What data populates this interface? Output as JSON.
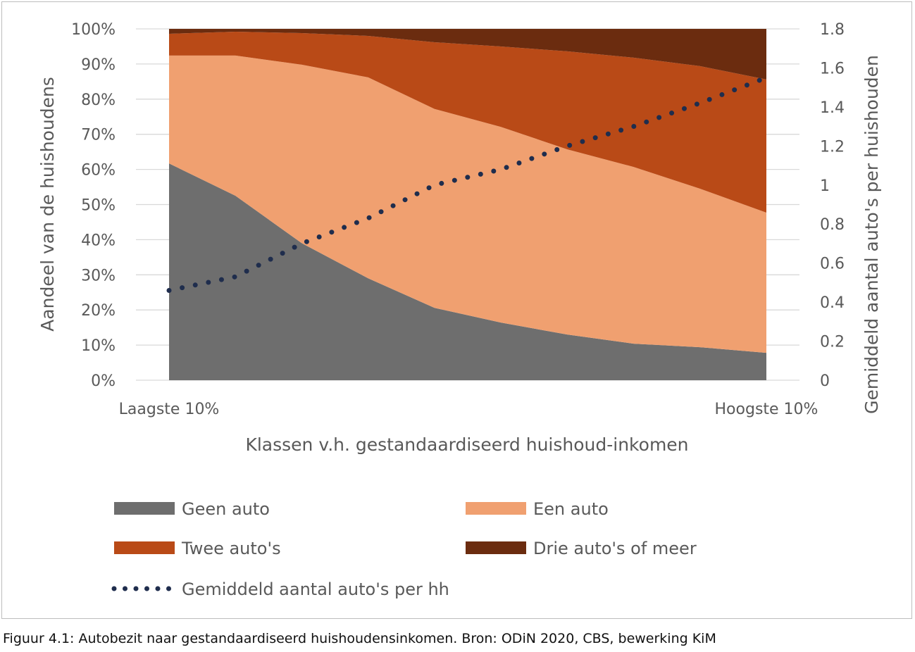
{
  "chart_data": {
    "type": "area",
    "title": "",
    "caption": "Figuur 4.1: Autobezit naar gestandaardiseerd huishoudensinkomen. Bron: ODiN 2020, CBS, bewerking KiM",
    "xlabel": "Klassen v.h. gestandaardiseerd huishoud-inkomen",
    "ylabel": "Aandeel van de huishoudens",
    "y2label": "Gemiddeld aantal auto's per huishouden",
    "x_tick_labels": [
      "Laagste 10%",
      "",
      "",
      "",
      "",
      "",
      "",
      "",
      "",
      "Hoogste 10%"
    ],
    "ylim": [
      0,
      100
    ],
    "y_ticks": [
      "0%",
      "10%",
      "20%",
      "30%",
      "40%",
      "50%",
      "60%",
      "70%",
      "80%",
      "90%",
      "100%"
    ],
    "y2lim": [
      0,
      1.8
    ],
    "y2_ticks": [
      "0",
      "0.2",
      "0.4",
      "0.6",
      "0.8",
      "1",
      "1.2",
      "1.4",
      "1.6",
      "1.8"
    ],
    "grid": true,
    "legend_position": "bottom",
    "series": [
      {
        "name": "Geen auto",
        "color": "#6e6e6e",
        "axis": "left",
        "stacked": true,
        "values": [
          61.7,
          52.5,
          39.0,
          29.0,
          20.6,
          16.4,
          13.0,
          10.4,
          9.4,
          7.8
        ]
      },
      {
        "name": "Een auto",
        "color": "#f0a070",
        "axis": "left",
        "stacked": true,
        "values": [
          30.7,
          39.9,
          50.8,
          57.2,
          56.6,
          55.7,
          52.7,
          50.3,
          45.1,
          39.9
        ]
      },
      {
        "name": "Twee auto's",
        "color": "#b94a17",
        "axis": "left",
        "stacked": true,
        "values": [
          6.2,
          6.8,
          9.0,
          11.8,
          19.0,
          22.9,
          27.9,
          31.1,
          34.9,
          37.9
        ]
      },
      {
        "name": "Drie auto's of meer",
        "color": "#6b2c0f",
        "axis": "left",
        "stacked": true,
        "values": [
          1.4,
          0.8,
          1.2,
          2.0,
          3.8,
          5.0,
          6.4,
          8.2,
          10.6,
          14.4
        ]
      },
      {
        "name": "Gemiddeld aantal auto's per hh",
        "color": "#1f2d4d",
        "axis": "right",
        "type": "line",
        "style": "dotted",
        "values": [
          0.46,
          0.53,
          0.7,
          0.83,
          1.0,
          1.08,
          1.2,
          1.3,
          1.42,
          1.55
        ]
      }
    ]
  }
}
